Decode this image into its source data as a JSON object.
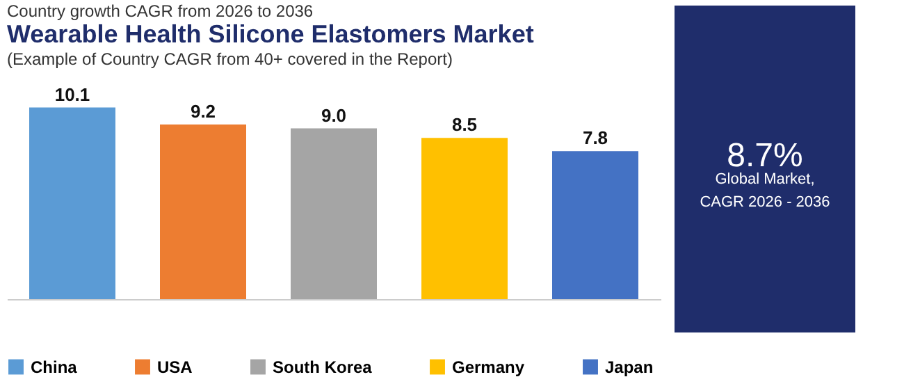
{
  "chart_data": {
    "type": "bar",
    "title": "Wearable Health Silicone Elastomers Market",
    "subtitle": "(Example of Country CAGR from 40+ covered in the Report)",
    "categories": [
      null,
      null,
      null,
      null,
      null
    ],
    "series": [
      {
        "name": "China",
        "color": "#5b9bd5",
        "values": [
          10.1,
          null,
          null,
          null,
          null
        ],
        "value_labels": [
          "10.1",
          null,
          null,
          null,
          null
        ]
      },
      {
        "name": "USA",
        "color": "#ed7d31",
        "values": [
          null,
          9.2,
          null,
          null,
          null
        ],
        "value_labels": [
          null,
          "9.2",
          null,
          null,
          null
        ]
      },
      {
        "name": "South Korea",
        "color": "#a5a5a5",
        "values": [
          null,
          null,
          9.0,
          null,
          null
        ],
        "value_labels": [
          null,
          null,
          "9.0",
          null,
          null
        ]
      },
      {
        "name": "Germany",
        "color": "#ffc000",
        "values": [
          null,
          null,
          null,
          8.5,
          null
        ],
        "value_labels": [
          null,
          null,
          null,
          "8.5",
          null
        ]
      },
      {
        "name": "Japan",
        "color": "#4472c4",
        "values": [
          null,
          null,
          null,
          null,
          7.8
        ],
        "value_labels": [
          null,
          null,
          null,
          null,
          "7.8"
        ]
      }
    ],
    "tick_labels": false,
    "legend": "bottom",
    "stacked": true,
    "annotations": [
      "Country growth CAGR from 2026 to 2036",
      "8.7%",
      "Global Market,",
      "CAGR 2026 - 2036"
    ]
  }
}
